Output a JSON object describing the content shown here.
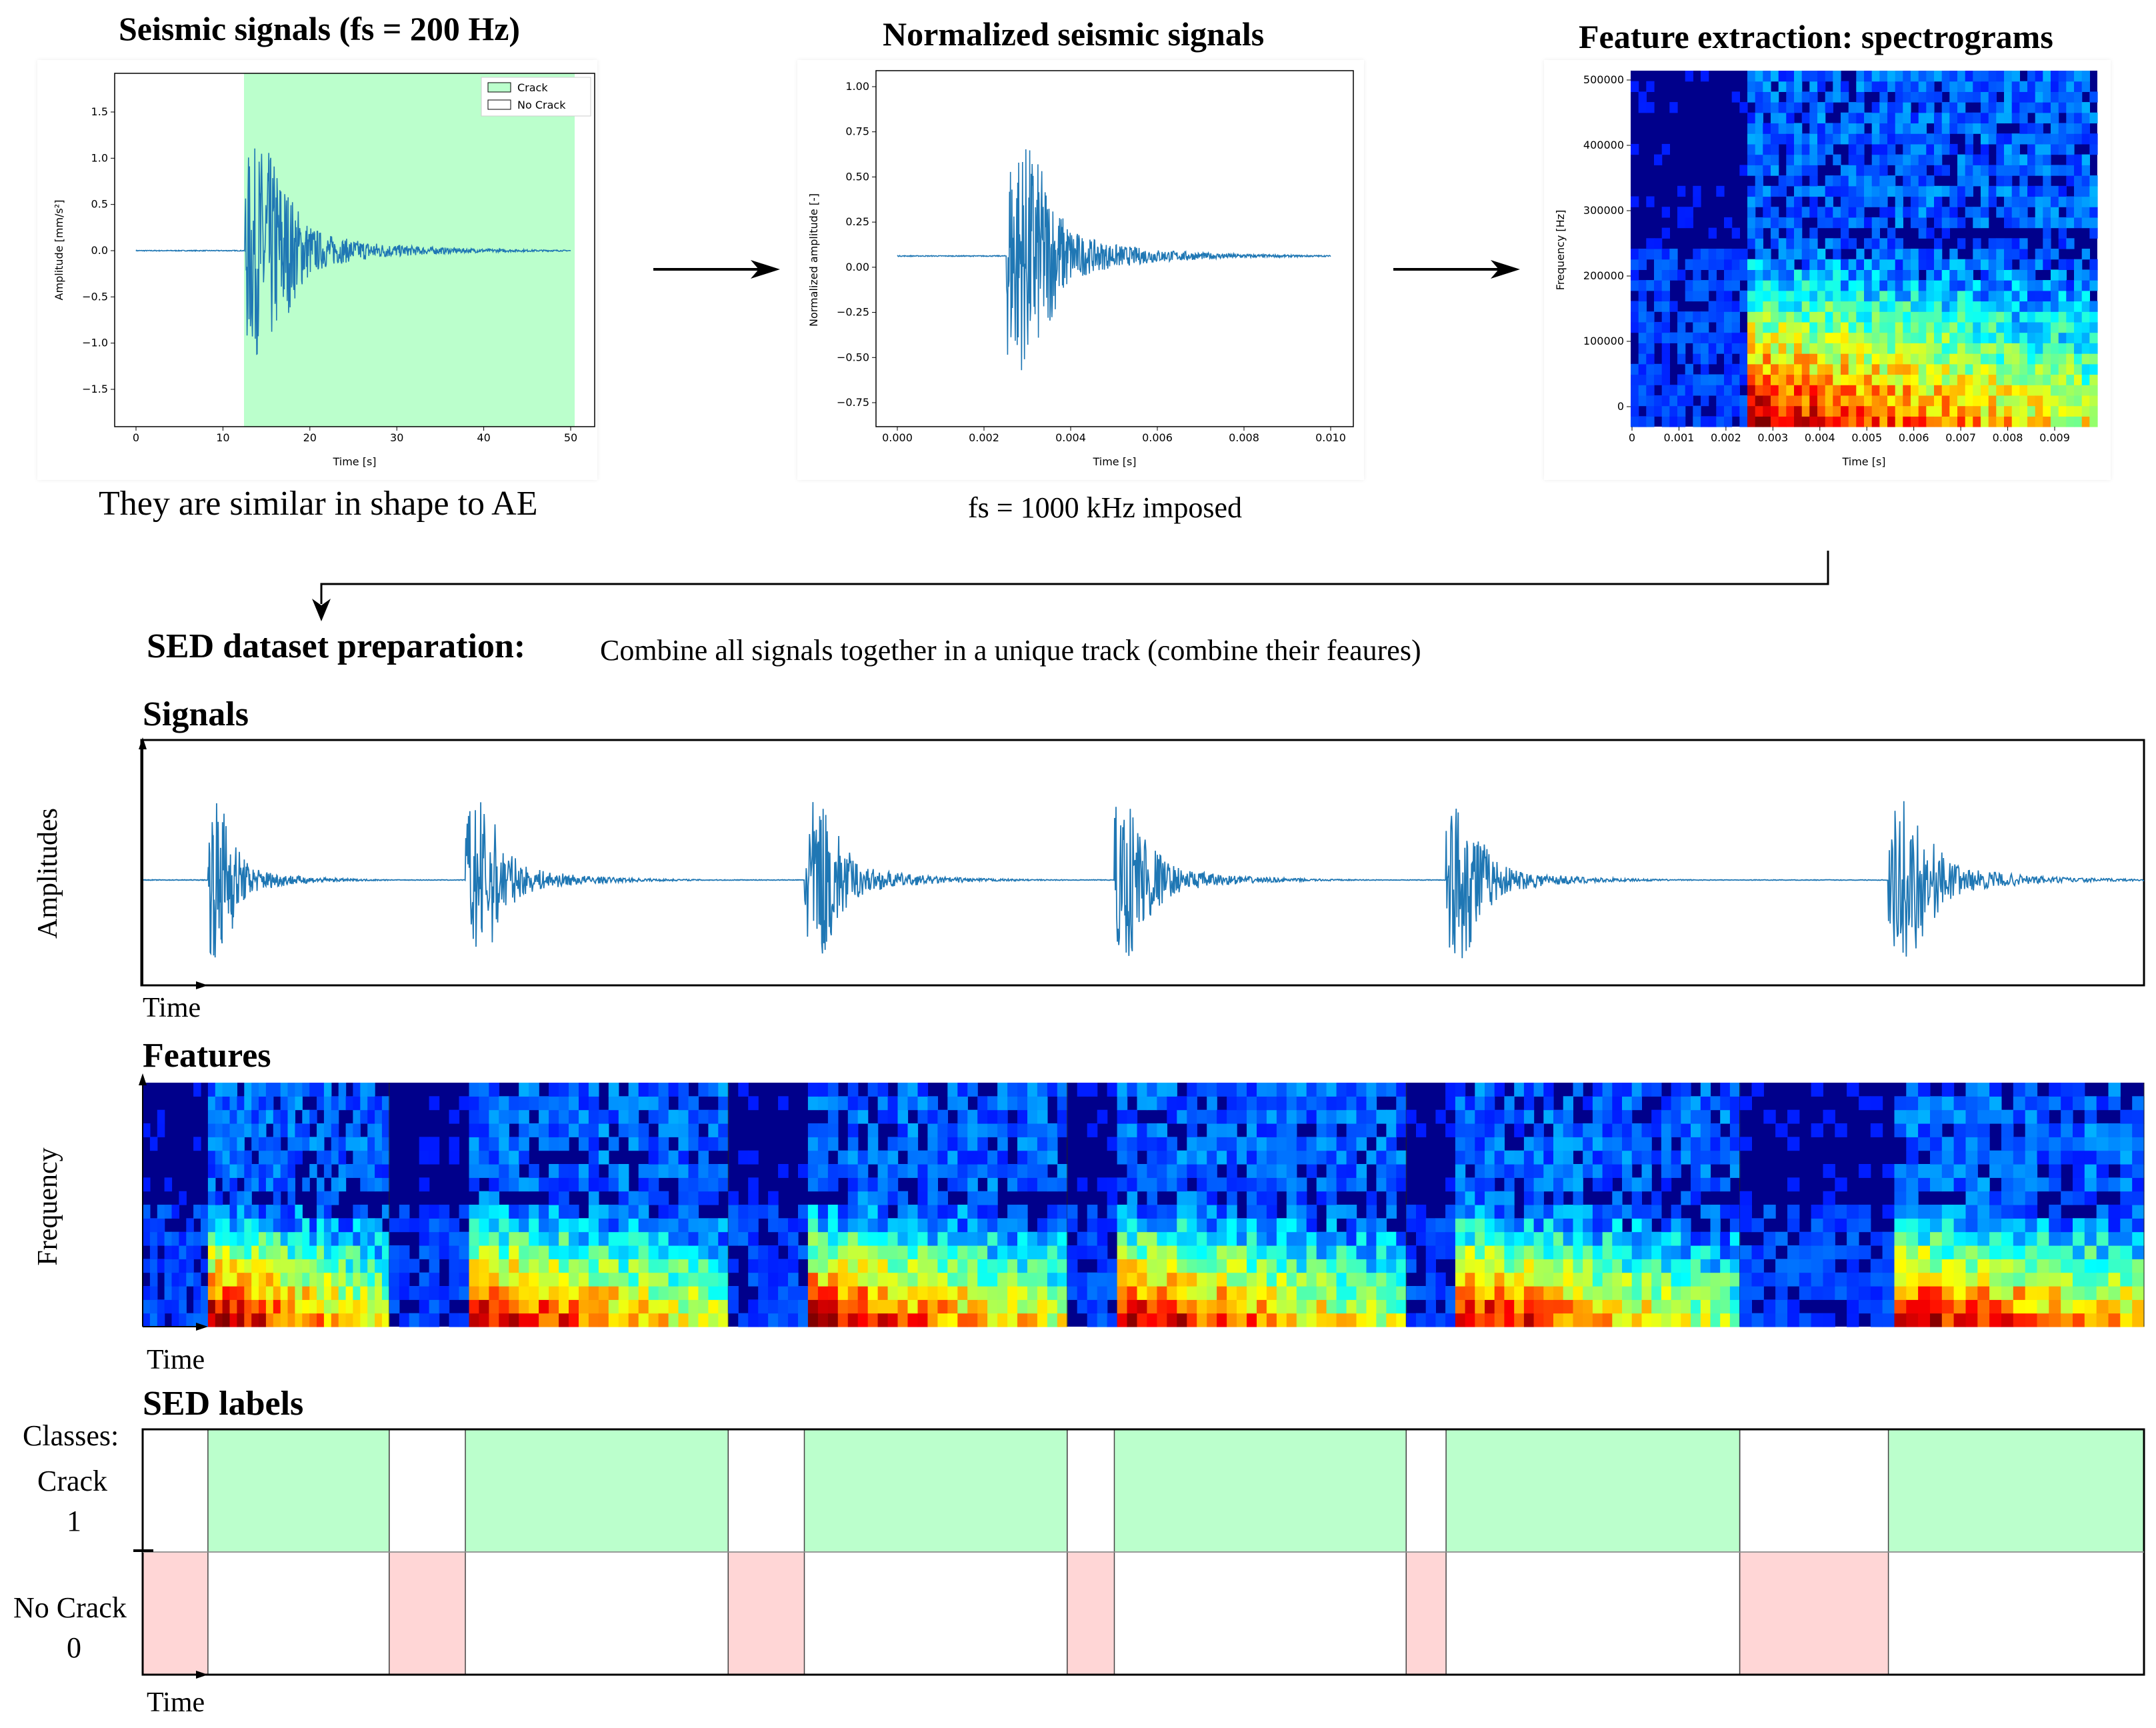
{
  "top": {
    "panel1": {
      "title": "Seismic signals (fs = 200 Hz)",
      "caption": "They are similar in shape to AE",
      "legend": [
        "Crack",
        "No Crack"
      ],
      "xlabel": "Time [s]",
      "ylabel": "Amplitude [mm/s²]",
      "xticks": [
        "0",
        "10",
        "20",
        "30",
        "40",
        "50"
      ],
      "yticks": [
        "1.5",
        "1.0",
        "0.5",
        "0.0",
        "−0.5",
        "−1.0",
        "−1.5"
      ]
    },
    "panel2": {
      "title": "Normalized seismic signals",
      "caption": "fs = 1000 kHz imposed",
      "xlabel": "Time [s]",
      "ylabel": "Normalized amplitude [-]",
      "xticks": [
        "0.000",
        "0.002",
        "0.004",
        "0.006",
        "0.008",
        "0.010"
      ],
      "yticks": [
        "1.00",
        "0.75",
        "0.50",
        "0.25",
        "0.00",
        "−0.25",
        "−0.50",
        "−0.75"
      ]
    },
    "panel3": {
      "title": "Feature extraction: spectrograms",
      "xlabel": "Time [s]",
      "ylabel": "Frequency [Hz]",
      "xticks": [
        "0",
        "0.001",
        "0.002",
        "0.003",
        "0.004",
        "0.005",
        "0.006",
        "0.007",
        "0.008",
        "0.009"
      ],
      "yticks": [
        "500000",
        "400000",
        "300000",
        "200000",
        "100000",
        "0"
      ]
    }
  },
  "sed": {
    "heading": "SED dataset preparation:",
    "description": "Combine all signals together in a unique track (combine their feaures)"
  },
  "signals": {
    "heading": "Signals",
    "ylabel": "Amplitudes",
    "xlabel": "Time"
  },
  "features": {
    "heading": "Features",
    "ylabel": "Frequency",
    "xlabel": "Time"
  },
  "labels": {
    "heading": "SED labels",
    "classes_label": "Classes:",
    "crack_name": "Crack",
    "crack_value": "1",
    "nocrack_name": "No Crack",
    "nocrack_value": "0",
    "xlabel": "Time"
  },
  "segments": [
    {
      "nocrack": 0.36,
      "crack": 1.0
    },
    {
      "nocrack": 0.42,
      "crack": 1.45
    },
    {
      "nocrack": 0.42,
      "crack": 1.45
    },
    {
      "nocrack": 0.26,
      "crack": 1.61
    },
    {
      "nocrack": 0.22,
      "crack": 1.62
    },
    {
      "nocrack": 0.82,
      "crack": 1.41
    }
  ],
  "colors": {
    "signal": "#1f77b4",
    "crack": "#bbffcc",
    "nocrack": "#ffd6d6",
    "spec_bg": "#00008b"
  }
}
